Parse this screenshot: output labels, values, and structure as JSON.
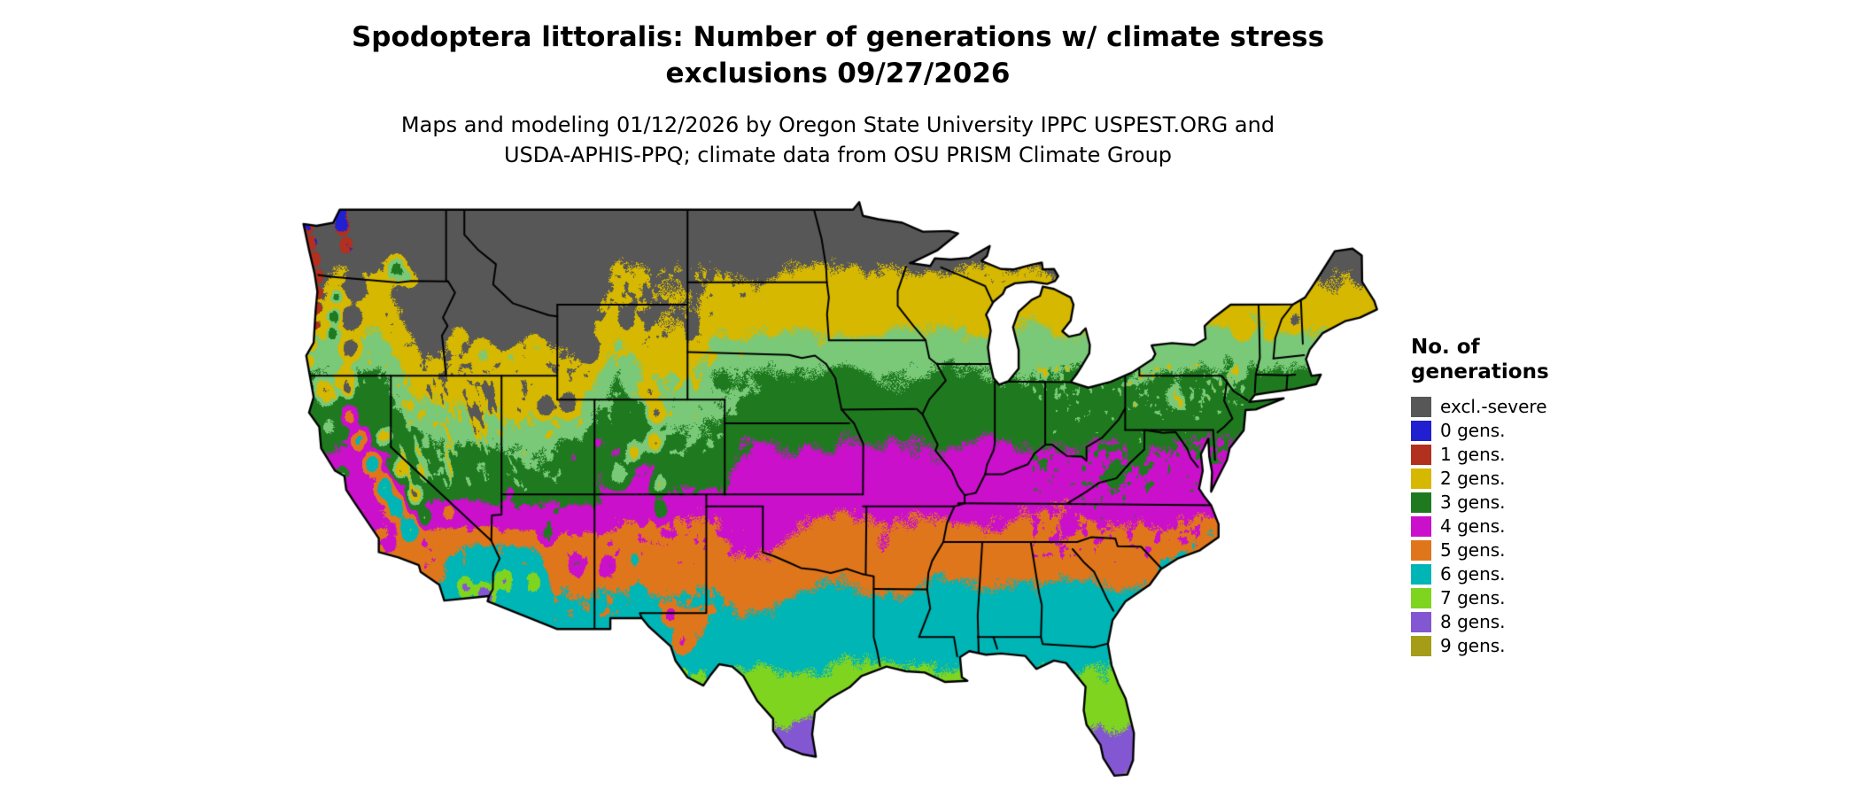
{
  "title": {
    "line1": "Spodoptera littoralis: Number of generations w/ climate stress",
    "line2": "exclusions 09/27/2026"
  },
  "subtitle": {
    "line1": "Maps and modeling 01/12/2026 by Oregon State University IPPC USPEST.ORG and",
    "line2": "USDA-APHIS-PPQ; climate data from OSU PRISM Climate Group"
  },
  "legend": {
    "heading_line1": "No. of",
    "heading_line2": "generations",
    "entries": [
      {
        "label": "excl.-severe",
        "color": "#575757"
      },
      {
        "label": "0 gens.",
        "color": "#2020d0"
      },
      {
        "label": "1 gens.",
        "color": "#b1301e"
      },
      {
        "label": "2 gens.",
        "color": "#d6b800"
      },
      {
        "label": "3 gens.",
        "color": "#1f7a1f"
      },
      {
        "label": "4 gens.",
        "color": "#ca10ca"
      },
      {
        "label": "5 gens.",
        "color": "#e0761b"
      },
      {
        "label": "6 gens.",
        "color": "#00b5b5"
      },
      {
        "label": "7 gens.",
        "color": "#7fd41f"
      },
      {
        "label": "8 gens.",
        "color": "#8457d2"
      },
      {
        "label": "9 gens.",
        "color": "#a59c17"
      }
    ]
  },
  "map": {
    "extra_shades": {
      "light_green": "#79c979",
      "water": "#ffffff",
      "border": "#000000"
    }
  }
}
